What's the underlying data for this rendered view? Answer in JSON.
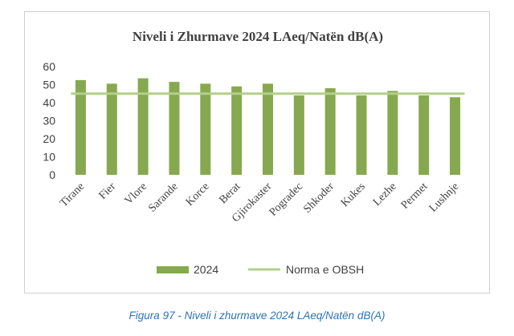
{
  "chart_data": {
    "type": "bar",
    "title": "Niveli i Zhurmave 2024 LAeq/Natën dB(A)",
    "categories": [
      "Tirane",
      "Fier",
      "Vlore",
      "Sarande",
      "Korce",
      "Berat",
      "Gjirokaster",
      "Pogradec",
      "Shkoder",
      "Kukes",
      "Lezhe",
      "Permet",
      "Lushnje"
    ],
    "series": [
      {
        "name": "2024",
        "type": "bar",
        "color": "#86a94f",
        "values": [
          52.5,
          50.5,
          53.5,
          51.5,
          50.5,
          49,
          50.5,
          44,
          48,
          44,
          46.5,
          44,
          43
        ]
      },
      {
        "name": "Norma e OBSH",
        "type": "line",
        "color": "#b4cf8b",
        "values": [
          45,
          45,
          45,
          45,
          45,
          45,
          45,
          45,
          45,
          45,
          45,
          45,
          45
        ]
      }
    ],
    "yticks": [
      "0",
      "10",
      "20",
      "30",
      "40",
      "50",
      "60"
    ],
    "ylim": [
      0,
      60
    ],
    "grid": false,
    "legend": "bottom"
  },
  "caption": "Figura 97 - Niveli i zhurmave 2024 LAeq/Natën dB(A)"
}
